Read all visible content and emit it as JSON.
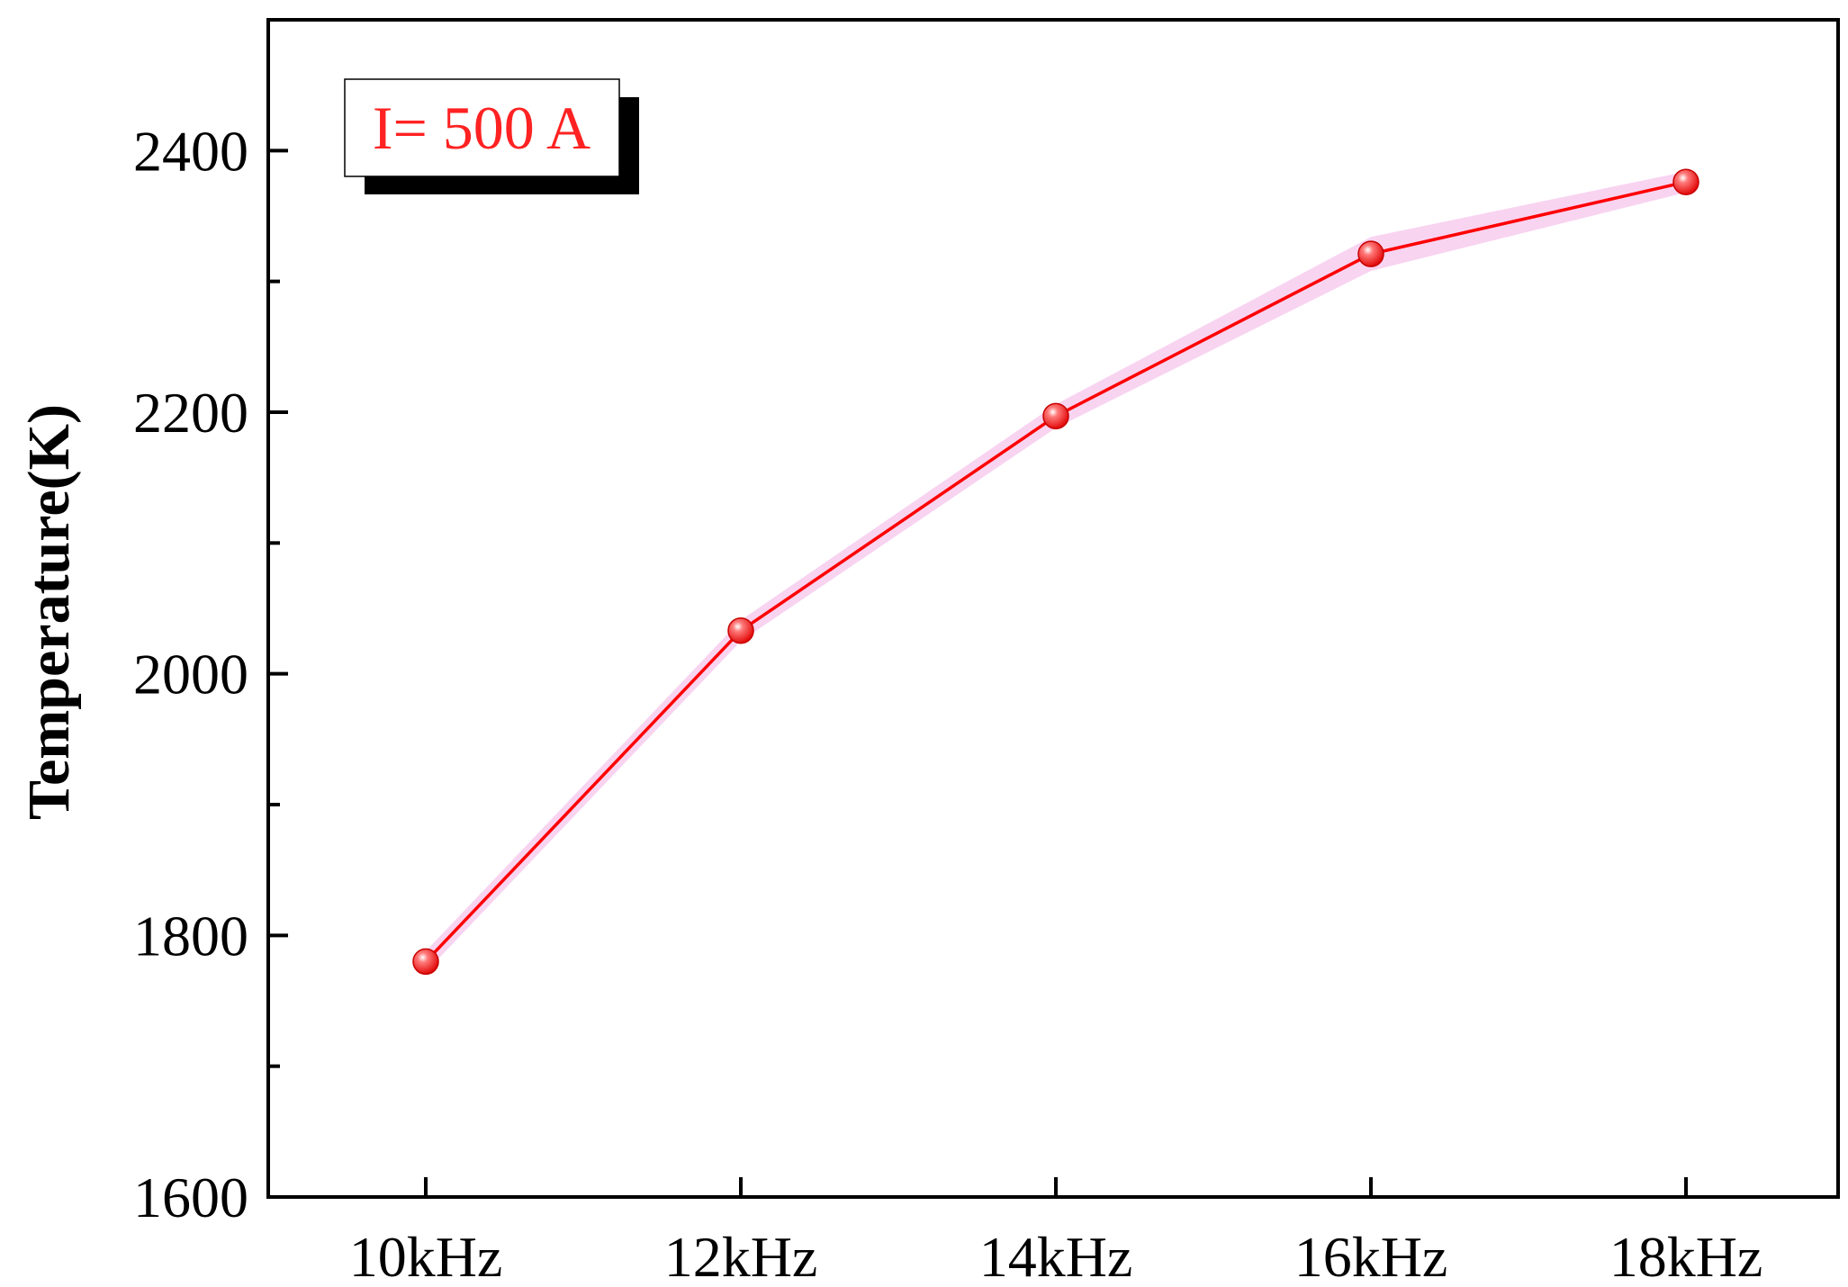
{
  "chart_data": {
    "type": "line",
    "title": "",
    "xlabel": "",
    "ylabel": "Temperature(K)",
    "categories": [
      "10kHz",
      "12kHz",
      "14kHz",
      "16kHz",
      "18kHz"
    ],
    "series": [
      {
        "name": "",
        "values": [
          1780,
          2033,
          2197,
          2321,
          2376
        ],
        "band_lower": [
          1772,
          2025,
          2188,
          2308,
          2368
        ],
        "band_upper": [
          1788,
          2041,
          2206,
          2334,
          2384
        ]
      }
    ],
    "ylim": [
      1600,
      2500
    ],
    "y_ticks": [
      1600,
      1800,
      2000,
      2200,
      2400
    ],
    "y_tick_labels": [
      "1600",
      "1800",
      "2000",
      "2200",
      "2400"
    ],
    "y_minor_step": 100,
    "grid": false,
    "annotation": "I= 500 A",
    "colors": {
      "line": "#ff0000",
      "marker": "#ff0000",
      "band": "#f7cdef",
      "annotation_text": "#ff2222",
      "axis": "#000000"
    }
  }
}
